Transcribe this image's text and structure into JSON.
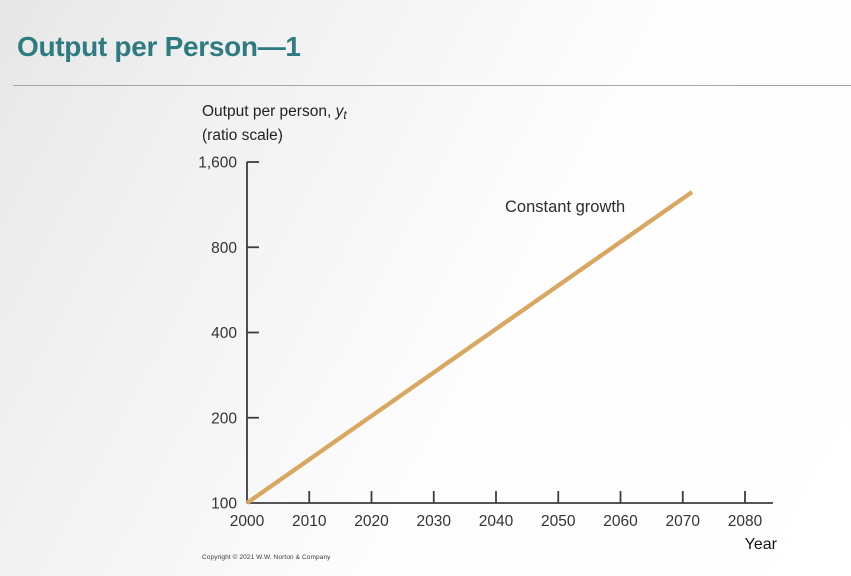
{
  "header": {
    "title": "Output per Person—1"
  },
  "chart_data": {
    "type": "line",
    "title": "",
    "y_axis_title_line1_prefix": "Output per person, ",
    "y_axis_title_var": "y",
    "y_axis_title_var_subscript": "t",
    "y_axis_title_line2": "(ratio scale)",
    "x_axis_title": "Year",
    "y_scale": "ratio (log base 2)",
    "x_range": [
      2000,
      2084
    ],
    "y_range": [
      100,
      1600
    ],
    "grid": false,
    "legend_position": "none (inline annotation)",
    "x_ticks": [
      2000,
      2010,
      2020,
      2030,
      2040,
      2050,
      2060,
      2070,
      2080
    ],
    "y_ticks": [
      {
        "value": 100,
        "label": "100"
      },
      {
        "value": 200,
        "label": "200"
      },
      {
        "value": 400,
        "label": "400"
      },
      {
        "value": 800,
        "label": "800"
      },
      {
        "value": 1600,
        "label": "1,600"
      }
    ],
    "annotation": "Constant growth",
    "series": [
      {
        "name": "Constant growth",
        "color": "#D9A761",
        "points": [
          [
            2000,
            100
          ],
          [
            2071.5,
            1254
          ]
        ]
      }
    ]
  },
  "footer": {
    "copyright": "Copyright © 2021 W.W. Norton & Company"
  },
  "colors": {
    "title_teal": "#2E7B82",
    "axis": "#3d3d3d",
    "growth_line": "#D9A761"
  }
}
